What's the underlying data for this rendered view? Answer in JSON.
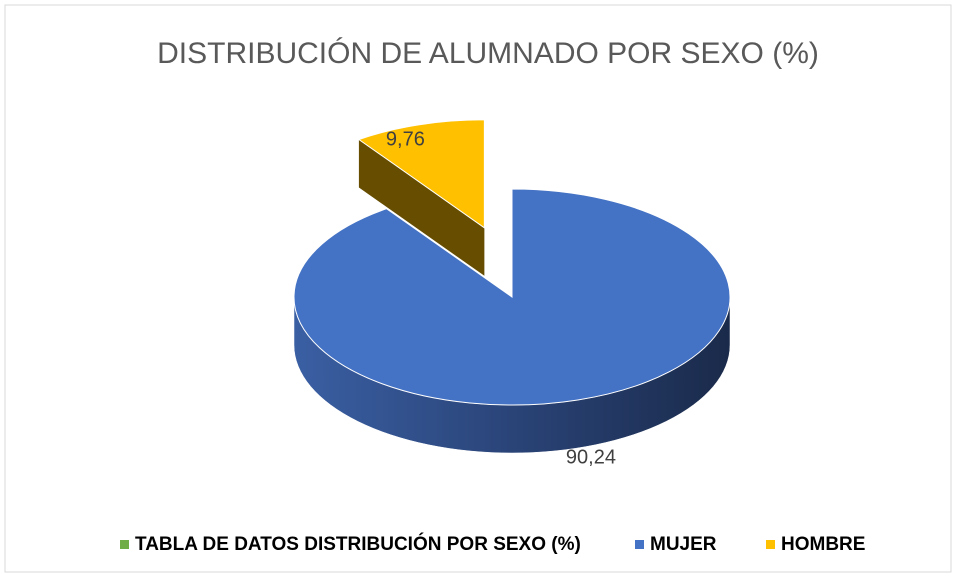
{
  "chart_data": {
    "type": "pie3d",
    "title": "DISTRIBUCIÓN DE ALUMNADO POR SEXO (%)",
    "categories": [
      "TABLA DE DATOS DISTRIBUCIÓN POR SEXO (%)",
      "MUJER",
      "HOMBRE"
    ],
    "values": [
      null,
      90.24,
      9.76
    ],
    "value_labels": [
      null,
      "90,24",
      "9,76"
    ],
    "colors": [
      "#70ad47",
      "#4472c4",
      "#ffc000"
    ],
    "exploded": [
      false,
      false,
      true
    ],
    "legend": "bottom"
  }
}
